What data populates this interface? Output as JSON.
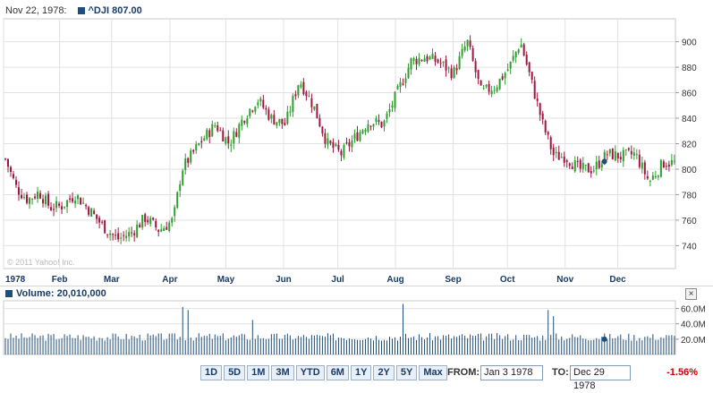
{
  "header": {
    "date": "Nov 22, 1978:",
    "symbol_label": "^DJI 807.00",
    "symbol_color": "#1f4e79"
  },
  "copyright": "© 2011 Yahoo! Inc.",
  "volume_header": {
    "label": "Volume: 20,010,000",
    "close_icon": "close-icon",
    "close_glyph": "×"
  },
  "toolbar": {
    "ranges": [
      "1D",
      "5D",
      "1M",
      "3M",
      "YTD",
      "6M",
      "1Y",
      "2Y",
      "5Y",
      "Max"
    ],
    "from_label": "FROM:",
    "from_value": "Jan 3 1978",
    "to_label": "TO:",
    "to_value": "Dec 29 1978",
    "change": "-1.56%"
  },
  "chart_data": [
    {
      "type": "candlestick",
      "title": "",
      "series_name": "^DJI",
      "x_tick_labels": [
        "1978",
        "Feb",
        "Mar",
        "Apr",
        "May",
        "Jun",
        "Jul",
        "Aug",
        "Sep",
        "Oct",
        "Nov",
        "Dec"
      ],
      "y_ticks": [
        740,
        760,
        780,
        800,
        820,
        840,
        860,
        880,
        900
      ],
      "ylim": [
        722,
        918
      ],
      "x_range": [
        "Jan 3 1978",
        "Dec 29 1978"
      ],
      "grid": true,
      "colors": {
        "up": "#2e9e2e",
        "down": "#a0153e"
      },
      "closes_weekly": [
        {
          "month": 0,
          "close": 808
        },
        {
          "month": 0.2,
          "close": 785
        },
        {
          "month": 0.4,
          "close": 776
        },
        {
          "month": 0.6,
          "close": 782
        },
        {
          "month": 0.8,
          "close": 770
        },
        {
          "month": 1.0,
          "close": 771
        },
        {
          "month": 1.25,
          "close": 780
        },
        {
          "month": 1.5,
          "close": 768
        },
        {
          "month": 1.75,
          "close": 755
        },
        {
          "month": 2.0,
          "close": 745
        },
        {
          "month": 2.25,
          "close": 750
        },
        {
          "month": 2.5,
          "close": 762
        },
        {
          "month": 2.75,
          "close": 752
        },
        {
          "month": 3.0,
          "close": 760
        },
        {
          "month": 3.15,
          "close": 800
        },
        {
          "month": 3.5,
          "close": 822
        },
        {
          "month": 3.75,
          "close": 835
        },
        {
          "month": 4.0,
          "close": 820
        },
        {
          "month": 4.25,
          "close": 840
        },
        {
          "month": 4.5,
          "close": 855
        },
        {
          "month": 4.75,
          "close": 840
        },
        {
          "month": 5.0,
          "close": 835
        },
        {
          "month": 5.25,
          "close": 870
        },
        {
          "month": 5.5,
          "close": 850
        },
        {
          "month": 5.75,
          "close": 820
        },
        {
          "month": 6.0,
          "close": 812
        },
        {
          "month": 6.25,
          "close": 825
        },
        {
          "month": 6.5,
          "close": 838
        },
        {
          "month": 6.75,
          "close": 835
        },
        {
          "month": 7.0,
          "close": 860
        },
        {
          "month": 7.25,
          "close": 885
        },
        {
          "month": 7.5,
          "close": 888
        },
        {
          "month": 7.75,
          "close": 884
        },
        {
          "month": 8.0,
          "close": 875
        },
        {
          "month": 8.25,
          "close": 900
        },
        {
          "month": 8.5,
          "close": 860
        },
        {
          "month": 8.75,
          "close": 865
        },
        {
          "month": 9.0,
          "close": 880
        },
        {
          "month": 9.2,
          "close": 900
        },
        {
          "month": 9.4,
          "close": 868
        },
        {
          "month": 9.6,
          "close": 835
        },
        {
          "month": 9.8,
          "close": 810
        },
        {
          "month": 10.0,
          "close": 810
        },
        {
          "month": 10.25,
          "close": 800
        },
        {
          "month": 10.5,
          "close": 800
        },
        {
          "month": 10.75,
          "close": 812
        },
        {
          "month": 11.0,
          "close": 810
        },
        {
          "month": 11.25,
          "close": 812
        },
        {
          "month": 11.5,
          "close": 790
        },
        {
          "month": 11.75,
          "close": 805
        },
        {
          "month": 11.95,
          "close": 805
        }
      ]
    },
    {
      "type": "bar",
      "title": "",
      "series_name": "Volume",
      "y_tick_labels": [
        "20.0M",
        "40.0M",
        "60.0M"
      ],
      "y_ticks": [
        20,
        40,
        60
      ],
      "ylim": [
        0,
        70
      ],
      "unit": "M",
      "colors": {
        "bar": "#1f4e79"
      },
      "spikes": [
        {
          "month": 3.15,
          "value": 62
        },
        {
          "month": 3.25,
          "value": 58
        },
        {
          "month": 4.4,
          "value": 45
        },
        {
          "month": 7.1,
          "value": 66
        },
        {
          "month": 9.7,
          "value": 58
        },
        {
          "month": 9.8,
          "value": 50
        }
      ],
      "marker": {
        "month": 10.7,
        "value": 20
      }
    }
  ]
}
